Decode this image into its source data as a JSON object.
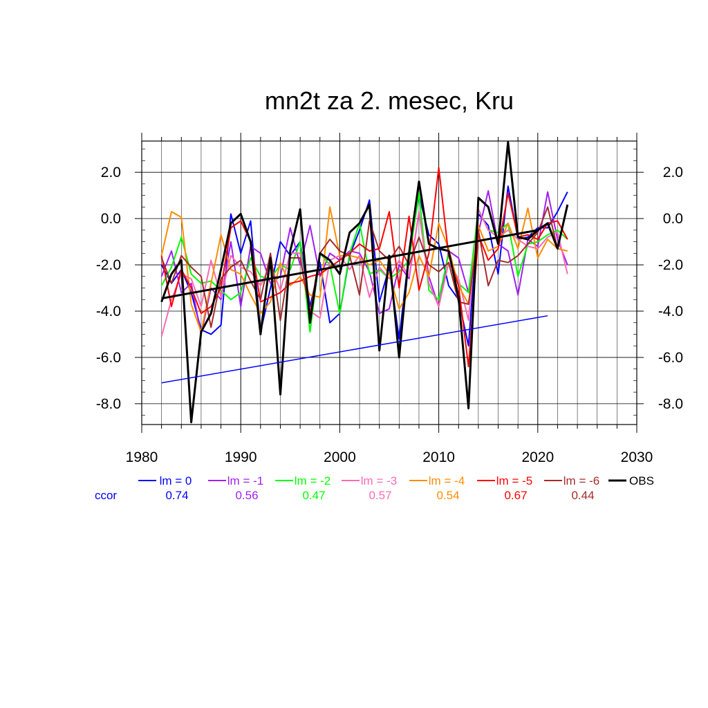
{
  "chart_data": {
    "type": "line",
    "title": "mn2t za 2. mesec, Kru",
    "xlabel": "",
    "ylabel": "",
    "xlim": [
      1980,
      2030
    ],
    "ylim": [
      -8.9,
      3.35
    ],
    "x_major_ticks": [
      1980,
      1990,
      2000,
      2010,
      2020,
      2030
    ],
    "x_tick_labels": [
      "1980",
      "1990",
      "2000",
      "2010",
      "2020",
      "2030"
    ],
    "y_major_ticks": [
      2,
      0,
      -2,
      -4,
      -6,
      -8
    ],
    "y_tick_labels": [
      "2.0",
      "0.0",
      "-2.0",
      "-4.0",
      "-6.0",
      "-8.0"
    ],
    "grid": true,
    "legend_placement": "bottom",
    "ccor_label": "ccor",
    "series": [
      {
        "name": "lm = 0",
        "ccor": "0.74",
        "color": "#0000ff",
        "values": [
          -2.0,
          -2.8,
          -2.2,
          -3.2,
          -4.8,
          -5.0,
          -4.6,
          0.2,
          -1.5,
          -0.1,
          -4.9,
          -3.0,
          -1.0,
          -1.6,
          -1.0,
          -3.8,
          -1.9,
          -4.5,
          -4.1,
          -1.6,
          -0.5,
          0.8,
          -3.6,
          -2.1,
          -5.2,
          -1.5,
          1.0,
          -0.7,
          -1.1,
          -2.9,
          -3.5,
          -5.5,
          0.2,
          -0.3,
          -2.4,
          1.4,
          -0.9,
          -0.8,
          -0.4,
          -0.4,
          0.3,
          1.15
        ]
      },
      {
        "name": "lm = -1",
        "ccor": "0.56",
        "color": "#a020f0",
        "values": [
          -2.5,
          -1.4,
          -3.2,
          -2.8,
          -5.0,
          -3.0,
          -3.5,
          -1.0,
          -3.8,
          -1.2,
          -1.5,
          -2.8,
          -2.5,
          -0.4,
          -2.0,
          -0.3,
          -2.5,
          -1.5,
          -1.8,
          -1.4,
          -1.5,
          -2.3,
          -4.1,
          -3.9,
          -2.0,
          -2.6,
          0.3,
          -2.5,
          -3.8,
          -1.4,
          -1.7,
          -3.2,
          -0.6,
          1.2,
          -1.1,
          -1.4,
          -3.3,
          -0.9,
          -1.2,
          1.15,
          -0.9,
          -2.0
        ]
      },
      {
        "name": "lm = -2",
        "ccor": "0.47",
        "color": "#00ff00",
        "values": [
          -2.9,
          -2.1,
          -0.8,
          -2.4,
          -2.8,
          -2.7,
          -3.1,
          -3.5,
          -3.2,
          -1.7,
          -2.5,
          -2.6,
          -2.0,
          -2.2,
          -1.0,
          -4.9,
          -1.5,
          -2.0,
          -4.1,
          -1.5,
          -0.2,
          -2.4,
          -2.2,
          -2.6,
          -2.3,
          -1.8,
          1.1,
          -3.1,
          -3.5,
          -1.5,
          -2.8,
          -3.2,
          0.4,
          -0.5,
          -0.6,
          -0.2,
          -2.5,
          -1.1,
          -1.0,
          -0.7,
          -0.5,
          -0.9
        ]
      },
      {
        "name": "lm = -3",
        "ccor": "0.57",
        "color": "#ff69b4",
        "values": [
          -5.1,
          -3.5,
          -2.4,
          -2.6,
          -3.8,
          -1.8,
          -3.4,
          -1.6,
          -2.1,
          -2.3,
          -2.9,
          -2.0,
          -3.1,
          -1.5,
          -1.5,
          -4.0,
          -4.3,
          -1.8,
          -1.6,
          -2.2,
          -1.6,
          -3.4,
          -2.1,
          -2.6,
          -1.8,
          -2.5,
          0.3,
          -2.8,
          -3.8,
          -1.9,
          -2.6,
          -4.4,
          0.4,
          -0.5,
          -0.8,
          -0.5,
          -0.9,
          -1.2,
          -1.3,
          -0.8,
          -0.6,
          -2.4
        ]
      },
      {
        "name": "lm = -4",
        "ccor": "0.54",
        "color": "#ff8c00",
        "values": [
          -1.6,
          0.3,
          0.05,
          -3.7,
          -4.9,
          -2.8,
          -0.7,
          -2.2,
          -2.4,
          -3.3,
          -4.1,
          -3.6,
          -1.9,
          -2.9,
          -2.5,
          -3.3,
          -3.4,
          0.5,
          -1.6,
          -1.6,
          -1.7,
          -2.0,
          -1.8,
          -2.4,
          -3.9,
          -3.2,
          -1.6,
          -2.5,
          -0.2,
          -1.3,
          -2.9,
          -3.7,
          -0.3,
          -1.4,
          -1.2,
          -0.2,
          -1.3,
          0.45,
          -1.7,
          -0.9,
          -1.3,
          -1.4
        ]
      },
      {
        "name": "lm = -5",
        "ccor": "0.67",
        "color": "#ff0000",
        "values": [
          -1.6,
          -3.8,
          -2.2,
          -3.0,
          -4.1,
          -3.8,
          -3.0,
          -0.4,
          -0.1,
          -1.0,
          -3.6,
          -3.4,
          -3.2,
          -2.8,
          -2.7,
          -2.5,
          -2.4,
          -2.1,
          -1.8,
          -1.5,
          -1.1,
          -1.4,
          -1.3,
          0.3,
          -3.0,
          0.1,
          -3.1,
          -1.5,
          2.2,
          -1.6,
          -2.9,
          -6.4,
          -0.7,
          -1.8,
          -1.3,
          1.1,
          -0.8,
          -0.7,
          -0.9,
          -0.2,
          -0.1,
          -0.9
        ]
      },
      {
        "name": "lm = -6",
        "ccor": "0.44",
        "color": "#a52a2a",
        "values": [
          -1.7,
          -2.8,
          -1.6,
          -2.1,
          -2.5,
          -4.7,
          -2.6,
          -2.1,
          -1.8,
          -2.7,
          -3.5,
          -1.5,
          -4.4,
          -1.7,
          -1.7,
          -4.1,
          -1.5,
          -0.9,
          -1.4,
          -1.6,
          -3.3,
          -0.1,
          -1.4,
          -1.8,
          -1.2,
          -2.0,
          -0.8,
          -2.0,
          -2.3,
          -1.9,
          -3.6,
          -3.7,
          -0.5,
          -2.9,
          -1.8,
          -1.9,
          -1.6,
          -1.1,
          -0.6,
          0.5,
          -1.3,
          0.6
        ]
      },
      {
        "name": "OBS",
        "color": "#000000",
        "values": [
          -3.6,
          -2.4,
          -1.8,
          -8.8,
          -4.9,
          -4.1,
          -2.2,
          -0.2,
          0.2,
          -1.0,
          -5.0,
          -1.7,
          -7.6,
          -1.4,
          0.4,
          -4.5,
          -1.5,
          -1.8,
          -2.4,
          -0.6,
          -0.2,
          0.6,
          -5.7,
          -1.6,
          -6.0,
          -1.5,
          1.6,
          -1.1,
          -1.3,
          -1.4,
          -3.4,
          -8.2,
          0.9,
          0.5,
          -1.1,
          3.3,
          -0.8,
          -0.9,
          -0.5,
          -0.2,
          -1.3,
          0.6
        ]
      }
    ],
    "trend_lines": [
      {
        "name": "OBS trend",
        "color": "#000000",
        "x": [
          1982,
          2020
        ],
        "y": [
          -3.45,
          -0.5
        ]
      },
      {
        "name": "lm = 0 trend",
        "color": "#0000ff",
        "x": [
          1982,
          2021
        ],
        "y": [
          -7.1,
          -4.2
        ]
      }
    ]
  }
}
